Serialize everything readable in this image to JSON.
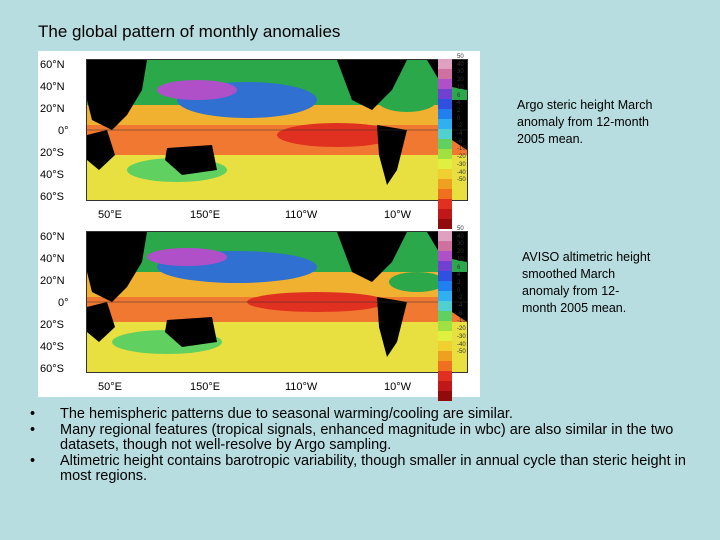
{
  "title": "The global pattern of monthly anomalies",
  "figure": {
    "lat_labels": [
      "60°N",
      "40°N",
      "20°N",
      "0°",
      "20°S",
      "40°S",
      "60°S"
    ],
    "lon_labels": [
      "50°E",
      "150°E",
      "110°W",
      "10°W"
    ],
    "colorbar_labels": [
      "50",
      "40",
      "30",
      "20",
      "10",
      "6",
      "4",
      "2",
      "0",
      "-2",
      "-4",
      "-6",
      "-10",
      "-20",
      "-30",
      "-40",
      "-50"
    ],
    "colorbar_colors": [
      "#e0a0c0",
      "#d070a0",
      "#b050c8",
      "#7040d0",
      "#3050e0",
      "#2080f0",
      "#30b0f0",
      "#50d0d0",
      "#60d060",
      "#a0e040",
      "#e0f040",
      "#f0d030",
      "#f0a020",
      "#f07020",
      "#e03020",
      "#c01818",
      "#900c0c"
    ]
  },
  "captions": {
    "argo": "Argo steric height March anomaly from 12-month 2005 mean.",
    "aviso": "AVISO altimetric height smoothed March anomaly from 12-month 2005 mean."
  },
  "bullets": [
    "The hemispheric patterns due to seasonal warming/cooling are similar.",
    "Many regional features (tropical signals, enhanced magnitude in wbc) are also similar in the two datasets, though not well-resolve by Argo sampling.",
    "Altimetric height contains barotropic variability, though smaller in annual cycle than steric height in most regions."
  ],
  "bullet_glyph": "•"
}
